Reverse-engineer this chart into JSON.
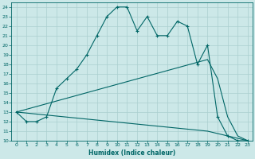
{
  "xlabel": "Humidex (Indice chaleur)",
  "bg_color": "#cce8e8",
  "line_color": "#006666",
  "grid_color": "#aacfcf",
  "xlim": [
    -0.5,
    23.5
  ],
  "ylim": [
    10,
    24.5
  ],
  "xticks": [
    0,
    1,
    2,
    3,
    4,
    5,
    6,
    7,
    8,
    9,
    10,
    11,
    12,
    13,
    14,
    15,
    16,
    17,
    18,
    19,
    20,
    21,
    22,
    23
  ],
  "yticks": [
    10,
    11,
    12,
    13,
    14,
    15,
    16,
    17,
    18,
    19,
    20,
    21,
    22,
    23,
    24
  ],
  "curve1_x": [
    0,
    1,
    2,
    3,
    4,
    5,
    6,
    7,
    8,
    9,
    10,
    11,
    12,
    13,
    14,
    15,
    16,
    17,
    18,
    19,
    20,
    21,
    22,
    23
  ],
  "curve1_y": [
    13,
    12,
    12,
    12.5,
    15.5,
    16.5,
    17.5,
    19,
    21,
    23,
    24,
    24,
    21.5,
    23,
    21,
    21,
    22.5,
    22,
    18,
    20,
    12.5,
    10.5,
    10,
    10
  ],
  "curve2_x": [
    0,
    19,
    20,
    21,
    22,
    23
  ],
  "curve2_y": [
    13,
    18.5,
    16.5,
    12.5,
    10.5,
    10
  ],
  "curve3_x": [
    0,
    19,
    23
  ],
  "curve3_y": [
    13,
    11,
    10
  ]
}
